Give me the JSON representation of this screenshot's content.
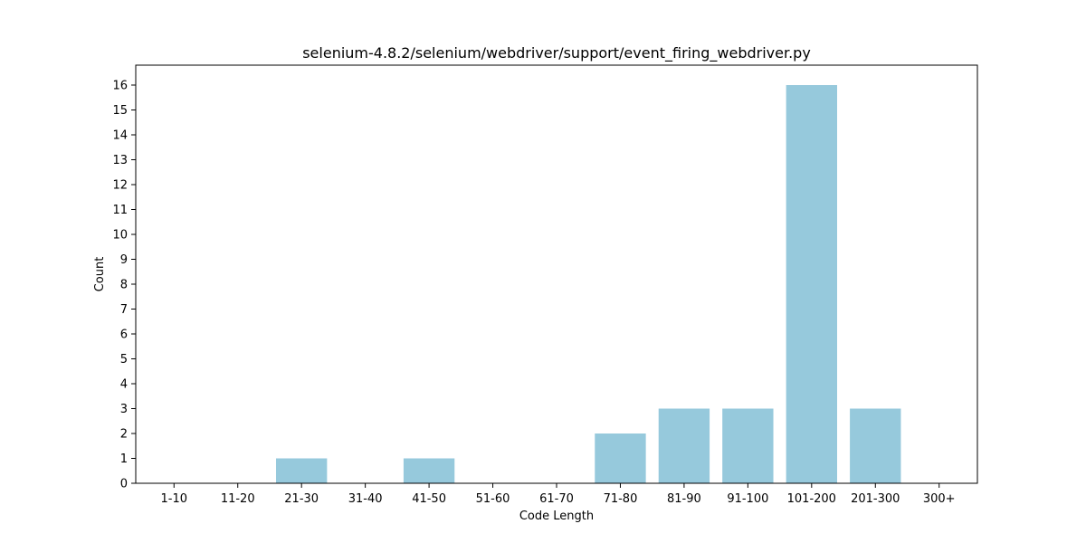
{
  "chart_data": {
    "type": "bar",
    "title": "selenium-4.8.2/selenium/webdriver/support/event_firing_webdriver.py",
    "xlabel": "Code Length",
    "ylabel": "Count",
    "categories": [
      "1-10",
      "11-20",
      "21-30",
      "31-40",
      "41-50",
      "51-60",
      "61-70",
      "71-80",
      "81-90",
      "91-100",
      "101-200",
      "201-300",
      "300+"
    ],
    "values": [
      0,
      0,
      1,
      0,
      1,
      0,
      0,
      2,
      3,
      3,
      16,
      3,
      0
    ],
    "ylim": [
      0,
      16.8
    ],
    "yticks": [
      0,
      1,
      2,
      3,
      4,
      5,
      6,
      7,
      8,
      9,
      10,
      11,
      12,
      13,
      14,
      15,
      16
    ],
    "grid": false,
    "legend": "none",
    "bar_color": "#96c9dc",
    "axes_color": "#000000"
  }
}
